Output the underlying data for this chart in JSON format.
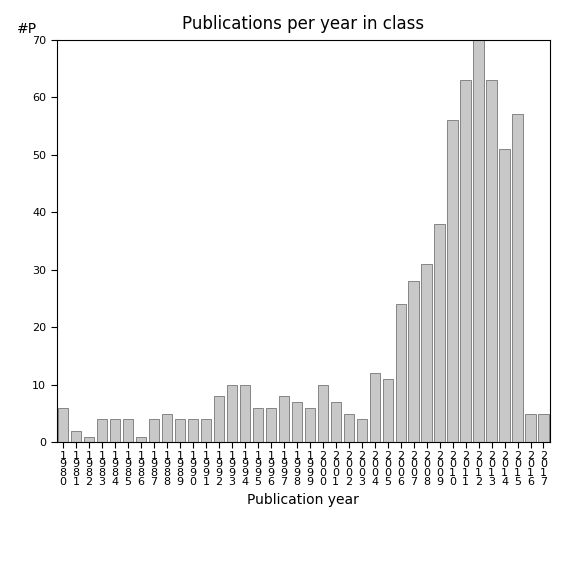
{
  "title": "Publications per year in class",
  "xlabel": "Publication year",
  "ylabel": "#P",
  "years": [
    "1980",
    "1981",
    "1982",
    "1983",
    "1984",
    "1985",
    "1986",
    "1987",
    "1988",
    "1989",
    "1990",
    "1991",
    "1992",
    "1993",
    "1994",
    "1995",
    "1996",
    "1997",
    "1998",
    "1999",
    "2000",
    "2001",
    "2002",
    "2003",
    "2004",
    "2005",
    "2006",
    "2007",
    "2008",
    "2009",
    "2010",
    "2011",
    "2012",
    "2013",
    "2014",
    "2015",
    "2016",
    "2017"
  ],
  "values": [
    6,
    2,
    1,
    4,
    4,
    4,
    1,
    4,
    5,
    4,
    4,
    4,
    8,
    10,
    10,
    6,
    6,
    8,
    7,
    6,
    10,
    7,
    5,
    4,
    12,
    11,
    24,
    28,
    31,
    38,
    56,
    63,
    70,
    63,
    51,
    57,
    5,
    5
  ],
  "bar_color": "#c8c8c8",
  "bar_edge_color": "#606060",
  "ylim": [
    0,
    70
  ],
  "yticks": [
    0,
    10,
    20,
    30,
    40,
    50,
    60,
    70
  ],
  "background_color": "#ffffff",
  "title_fontsize": 12,
  "axis_fontsize": 10,
  "tick_fontsize": 8
}
